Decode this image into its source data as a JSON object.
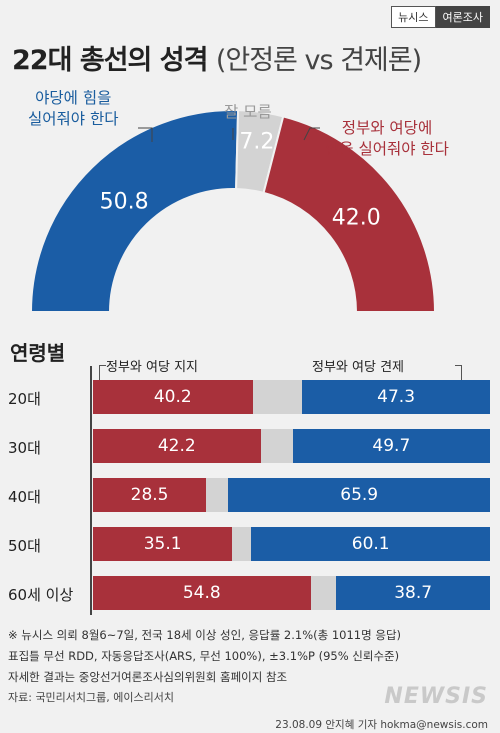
{
  "brand": {
    "outlet": "뉴시스",
    "series": "여론조사"
  },
  "header": {
    "title_main": "22대 총선의 성격",
    "title_sub": "(안정론 vs 견제론)"
  },
  "chart_data": [
    {
      "type": "pie",
      "title": "22대 총선의 성격 (안정론 vs 견제론)",
      "slices": [
        {
          "label_line1": "야당에 힘을",
          "label_line2": "실어줘야 한다",
          "value": 50.8,
          "color": "#1b5da6"
        },
        {
          "label_line1": "잘 모름",
          "label_line2": "",
          "value": 7.2,
          "color": "#d3d3d3"
        },
        {
          "label_line1": "정부와 여당에",
          "label_line2": "힘을 실어줘야 한다",
          "value": 42.0,
          "color": "#a8313b"
        }
      ]
    },
    {
      "type": "bar",
      "title": "연령별",
      "legend": {
        "support": "정부와 여당 지지",
        "check": "정부와 여당 견제"
      },
      "categories": [
        "20대",
        "30대",
        "40대",
        "50대",
        "60세 이상"
      ],
      "series": [
        {
          "name": "정부와 여당 지지",
          "values": [
            40.2,
            42.2,
            28.5,
            35.1,
            54.8
          ],
          "color": "#a8313b"
        },
        {
          "name": "정부와 여당 견제",
          "values": [
            47.3,
            49.7,
            65.9,
            60.1,
            38.7
          ],
          "color": "#1b5da6"
        }
      ]
    }
  ],
  "notes": {
    "line1": "※ 뉴시스 의뢰 8월6~7일, 전국 18세 이상 성인, 응답률 2.1%(총 1011명 응답)",
    "line2": "표집틀 무선 RDD, 자동응답조사(ARS, 무선 100%), ±3.1%P (95% 신뢰수준)",
    "line3": "자세한 결과는 중앙선거여론조사심의위원회 홈페이지 참조",
    "source": "자료: 국민리서치그룹, 에이스리서치",
    "credit": "23.08.09  안지혜 기자  hokma@newsis.com",
    "watermark": "NEWSIS"
  }
}
